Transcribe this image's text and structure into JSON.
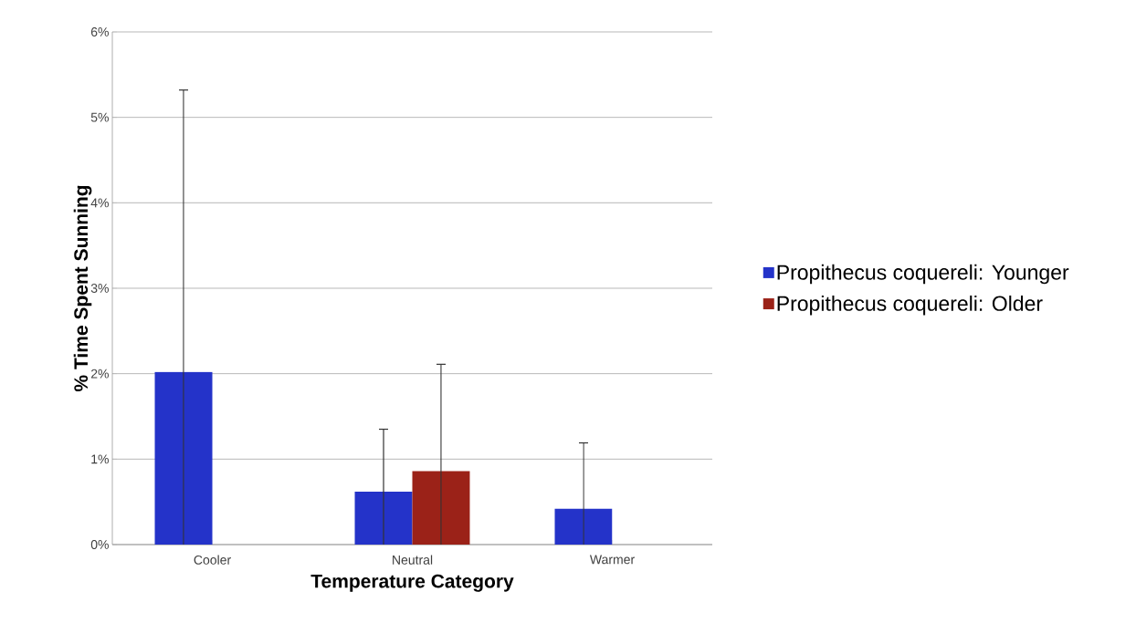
{
  "chart_data": {
    "type": "bar",
    "xlabel": "Temperature Category",
    "ylabel": "% Time Spent Sunning",
    "categories": [
      "Cooler",
      "Neutral",
      "Warmer"
    ],
    "series": [
      {
        "name": "Propithecus coquereli: Younger",
        "color": "#2433c9",
        "values": [
          2.02,
          0.62,
          0.42
        ],
        "errors": [
          [
            0,
            5.32
          ],
          [
            0,
            1.35
          ],
          [
            0,
            1.19
          ]
        ]
      },
      {
        "name": "Propithecus coquereli: Older",
        "color": "#9b2218",
        "values": [
          null,
          0.86,
          null
        ],
        "errors": [
          null,
          [
            0,
            2.11
          ],
          null
        ]
      }
    ],
    "ylim": [
      0,
      6
    ],
    "yticks": [
      {
        "value": 0,
        "label": "0%"
      },
      {
        "value": 1,
        "label": "1%"
      },
      {
        "value": 2,
        "label": "2%"
      },
      {
        "value": 3,
        "label": "3%"
      },
      {
        "value": 4,
        "label": "4%"
      },
      {
        "value": 5,
        "label": "5%"
      },
      {
        "value": 6,
        "label": "6%"
      }
    ],
    "grid": "y",
    "legend": "right"
  }
}
